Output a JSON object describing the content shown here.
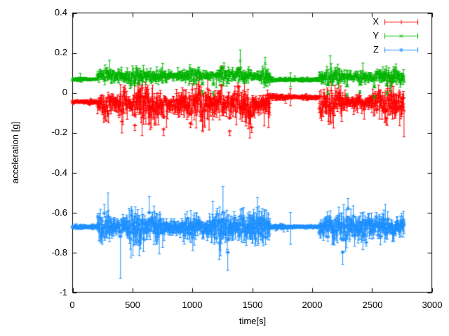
{
  "figure": {
    "background": "#ffffff",
    "border_color": "#000000",
    "text_color": "#000000"
  },
  "axes": {
    "xlabel": "time[s]",
    "ylabel": "acceleration [g]",
    "xlim": [
      0,
      3000
    ],
    "ylim": [
      -1,
      0.4
    ],
    "x_ticks": [
      0,
      500,
      1000,
      1500,
      2000,
      2500,
      3000
    ],
    "x_tick_labels": [
      "0",
      "500",
      "1000",
      "1500",
      "2000",
      "2500",
      "3000"
    ],
    "y_ticks": [
      0.4,
      0.2,
      0,
      -0.2,
      -0.4,
      -0.6,
      -0.8,
      -1
    ],
    "y_tick_labels": [
      "0.4",
      "0.2",
      "0",
      "-0.2",
      "-0.4",
      "-0.6",
      "-0.8",
      "-1"
    ],
    "grid": false,
    "tick_style": "inward-mirrored"
  },
  "legend": {
    "position": "top-right-inside",
    "box": false,
    "entries": [
      {
        "label": "X",
        "color": "#ff0000",
        "marker": "plus"
      },
      {
        "label": "Y",
        "color": "#00b400",
        "marker": "cross"
      },
      {
        "label": "Z",
        "color": "#1e90ff",
        "marker": "star"
      }
    ]
  },
  "chart_data": {
    "type": "line",
    "style": "points-with-yerrorbars",
    "title": "",
    "xlabel": "time[s]",
    "ylabel": "acceleration [g]",
    "xlim": [
      0,
      3000
    ],
    "ylim": [
      -1,
      0.4
    ],
    "data_time_span": [
      0,
      2770
    ],
    "sample_step_s": 4,
    "series": [
      {
        "name": "X",
        "color": "#ff0000",
        "marker": "plus",
        "skew_down": 1.35,
        "segments": [
          {
            "t": [
              0,
              205
            ],
            "mean": -0.045,
            "noise": 0.004,
            "err": 0.007
          },
          {
            "t": [
              205,
              1650
            ],
            "mean": -0.055,
            "noise": 0.03,
            "err": 0.045
          },
          {
            "t": [
              1650,
              2060
            ],
            "mean": -0.022,
            "noise": 0.004,
            "err": 0.007
          },
          {
            "t": [
              2060,
              2771
            ],
            "mean": -0.05,
            "noise": 0.028,
            "err": 0.045
          }
        ],
        "spikes": [
          {
            "t": 520,
            "y": -0.165,
            "lo": -0.19
          },
          {
            "t": 760,
            "y": -0.185,
            "lo": -0.215
          },
          {
            "t": 985,
            "y": -0.155,
            "lo": -0.175
          },
          {
            "t": 1245,
            "y": 0.125,
            "hi": 0.135
          },
          {
            "t": 1310,
            "y": -0.195,
            "lo": -0.215
          },
          {
            "t": 1385,
            "y": 0.115,
            "hi": 0.125
          },
          {
            "t": 1495,
            "y": -0.175,
            "lo": -0.2
          },
          {
            "t": 1820,
            "y": -0.022,
            "lo": -0.065,
            "hi": 0.02
          },
          {
            "t": 2620,
            "y": -0.13,
            "lo": -0.16
          }
        ]
      },
      {
        "name": "Y",
        "color": "#00b400",
        "marker": "cross",
        "skew_down": 1.0,
        "segments": [
          {
            "t": [
              0,
              205
            ],
            "mean": 0.068,
            "noise": 0.004,
            "err": 0.007
          },
          {
            "t": [
              205,
              1650
            ],
            "mean": 0.085,
            "noise": 0.018,
            "err": 0.025
          },
          {
            "t": [
              1650,
              2060
            ],
            "mean": 0.065,
            "noise": 0.004,
            "err": 0.007
          },
          {
            "t": [
              2060,
              2771
            ],
            "mean": 0.08,
            "noise": 0.018,
            "err": 0.028
          }
        ],
        "spikes": [
          {
            "t": 1085,
            "y": 0.005,
            "lo": -0.01
          },
          {
            "t": 1175,
            "y": 0.0,
            "lo": -0.015
          },
          {
            "t": 1400,
            "y": 0.16,
            "hi": 0.215,
            "lo": 0.1
          },
          {
            "t": 1820,
            "y": 0.065,
            "lo": 0.03,
            "hi": 0.1
          },
          {
            "t": 2130,
            "y": 0.0,
            "lo": -0.01
          },
          {
            "t": 2290,
            "y": -0.01,
            "lo": -0.02
          },
          {
            "t": 2400,
            "y": 0.005,
            "lo": -0.005
          },
          {
            "t": 2520,
            "y": -0.02,
            "lo": -0.03
          },
          {
            "t": 2625,
            "y": 0.0,
            "lo": -0.012
          }
        ]
      },
      {
        "name": "Z",
        "color": "#1e90ff",
        "marker": "star",
        "skew_down": 1.1,
        "segments": [
          {
            "t": [
              0,
              205
            ],
            "mean": -0.672,
            "noise": 0.004,
            "err": 0.007
          },
          {
            "t": [
              205,
              1650
            ],
            "mean": -0.672,
            "noise": 0.025,
            "err": 0.05
          },
          {
            "t": [
              1650,
              2060
            ],
            "mean": -0.672,
            "noise": 0.004,
            "err": 0.007
          },
          {
            "t": [
              2060,
              2771
            ],
            "mean": -0.672,
            "noise": 0.027,
            "err": 0.05
          }
        ],
        "spikes": [
          {
            "t": 400,
            "y": -0.72,
            "lo": -0.93
          },
          {
            "t": 640,
            "y": -0.6,
            "hi": -0.52
          },
          {
            "t": 1254,
            "y": -0.6,
            "hi": -0.47
          },
          {
            "t": 1295,
            "y": -0.8,
            "lo": -0.89
          },
          {
            "t": 1820,
            "y": -0.672,
            "lo": -0.76,
            "hi": -0.6
          },
          {
            "t": 2255,
            "y": -0.8,
            "lo": -0.86
          },
          {
            "t": 2300,
            "y": -0.58,
            "hi": -0.53
          }
        ]
      }
    ]
  }
}
